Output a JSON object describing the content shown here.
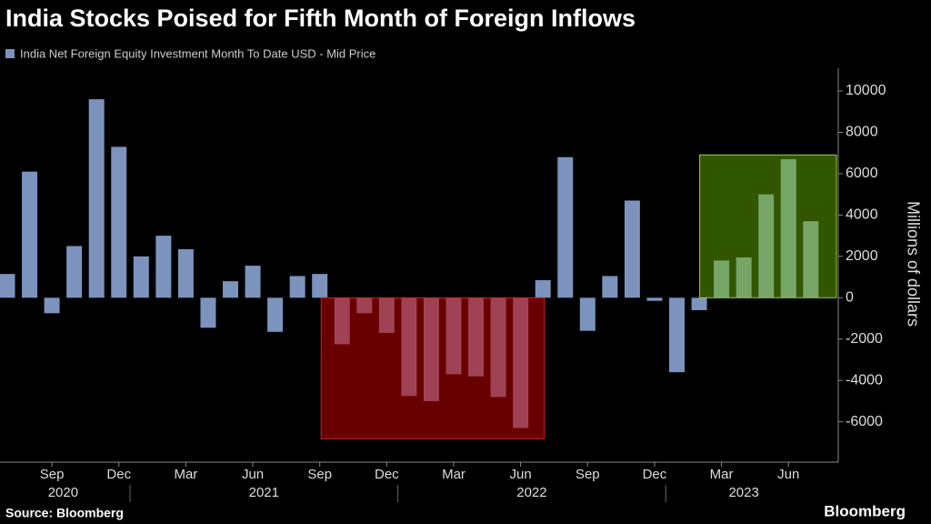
{
  "chart_data": {
    "type": "bar",
    "title": "India Stocks Poised for Fifth Month of Foreign Inflows",
    "y_label": "Millions of dollars",
    "source": "Source: Bloomberg",
    "brand": "Bloomberg",
    "categories": [
      null,
      null,
      "Sep",
      null,
      null,
      "Dec",
      null,
      null,
      "Mar",
      null,
      null,
      "Jun",
      null,
      null,
      "Sep",
      null,
      null,
      "Dec",
      null,
      null,
      "Mar",
      null,
      null,
      "Jun",
      null,
      null,
      "Sep",
      null,
      null,
      "Dec",
      null,
      null,
      "Mar",
      null,
      null,
      "Jun",
      null
    ],
    "years": [
      "2020",
      "2021",
      "2022",
      "2023"
    ],
    "series": [
      {
        "name": "India Net Foreign Equity Investment Month To Date USD - Mid Price",
        "color": "#7b93bd",
        "values": [
          1150,
          6100,
          -750,
          2500,
          9600,
          7300,
          2000,
          3000,
          2350,
          -1450,
          800,
          1550,
          -1650,
          1050,
          1150,
          -2250,
          -750,
          -1700,
          -4750,
          -5000,
          -3700,
          -3800,
          -4800,
          -6300,
          850,
          6800,
          -1600,
          1050,
          4700,
          -150,
          -3600,
          -600,
          1800,
          1950,
          5000,
          6700,
          3700
        ]
      }
    ],
    "ylim": [
      -7950,
      11100
    ],
    "yticks": [
      -6000,
      -4000,
      -2000,
      0,
      2000,
      4000,
      6000,
      8000,
      10000
    ],
    "grid": false
  }
}
